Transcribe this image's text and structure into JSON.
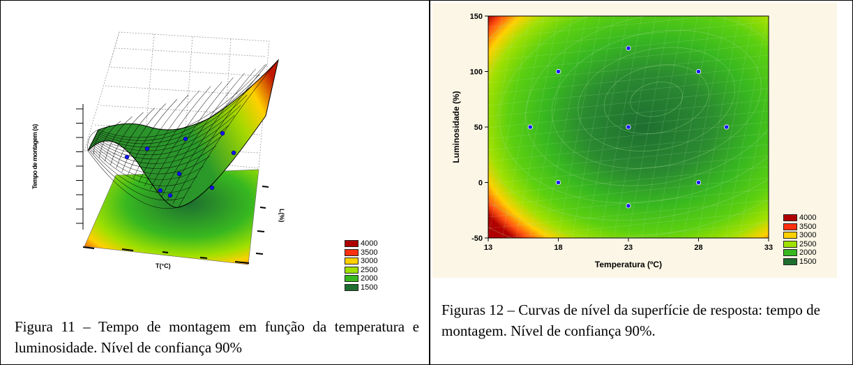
{
  "chart_data": [
    {
      "type": "surface3d",
      "x_label": "T(°C)",
      "y_label": "L(%)",
      "z_label": "Tempo de montagem (s)",
      "legend": [
        "4000",
        "3500",
        "3000",
        "2500",
        "2000",
        "1500"
      ],
      "legend_colors": [
        "#b00000",
        "#ff3010",
        "#ffd000",
        "#a0e000",
        "#38b820",
        "#1e6e30"
      ],
      "design_points_count": 9
    },
    {
      "type": "contour",
      "title": "",
      "xlabel": "Temperatura (ºC)",
      "ylabel": "Luminosidade (%)",
      "xlim": [
        13,
        33
      ],
      "ylim": [
        -50,
        150
      ],
      "xticks": [
        "13",
        "18",
        "23",
        "28",
        "33"
      ],
      "yticks": [
        "150",
        "100",
        "50",
        "0",
        "-50"
      ],
      "legend": [
        "4000",
        "3500",
        "3000",
        "2500",
        "2000",
        "1500"
      ],
      "legend_colors": [
        "#b00000",
        "#ff3010",
        "#ffd000",
        "#a0e000",
        "#38b820",
        "#1e6e30"
      ],
      "points": [
        {
          "x": 18,
          "y": 100
        },
        {
          "x": 23,
          "y": 121
        },
        {
          "x": 28,
          "y": 100
        },
        {
          "x": 16,
          "y": 50
        },
        {
          "x": 23,
          "y": 50
        },
        {
          "x": 30,
          "y": 50
        },
        {
          "x": 18,
          "y": 0
        },
        {
          "x": 28,
          "y": 0
        },
        {
          "x": 23,
          "y": -21
        }
      ]
    }
  ],
  "captions": {
    "left": "Figura 11 – Tempo de montagem em função da temperatura e luminosidade. Nível de confiança 90%",
    "right": "Figuras 12 – Curvas de nível da superfície de resposta: tempo de montagem. Nível de confiança 90%."
  }
}
